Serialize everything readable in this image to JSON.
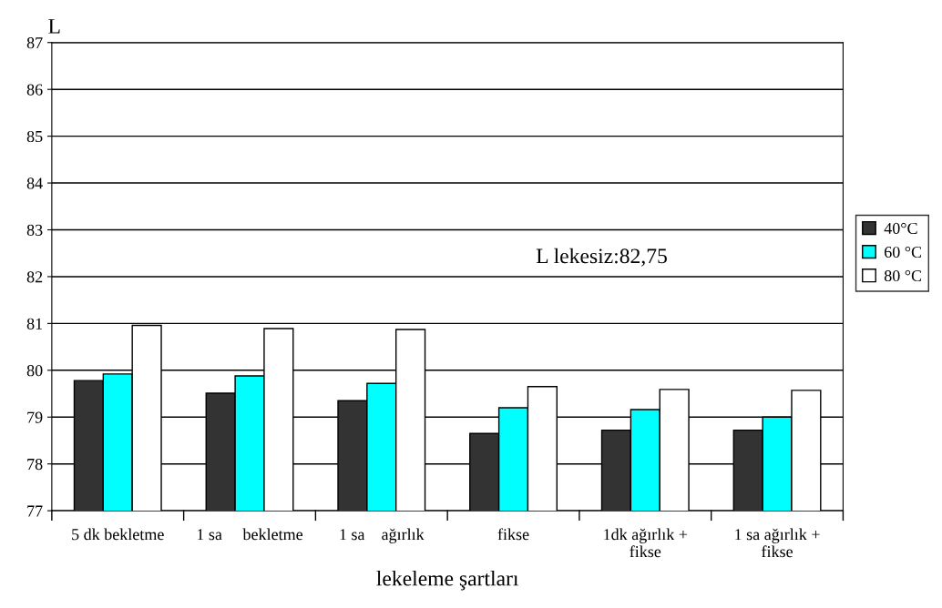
{
  "chart_data": {
    "type": "bar",
    "ylabel": "L",
    "xlabel": "lekeleme şartları",
    "categories": [
      "5 dk bekletme",
      "1 sa     bekletme",
      "1 sa    ağırlık",
      "fikse",
      "1dk ağırlık +\nfikse",
      "1 sa ağırlık +\nfikse"
    ],
    "series": [
      {
        "name": "40°C",
        "color": "#333333",
        "values": [
          79.78,
          79.51,
          79.35,
          78.65,
          78.72,
          78.72
        ]
      },
      {
        "name": "60 °C",
        "color": "#00ffff",
        "values": [
          79.92,
          79.88,
          79.72,
          79.2,
          79.16,
          79.0
        ]
      },
      {
        "name": "80 °C",
        "color": "#ffffff",
        "values": [
          80.96,
          80.89,
          80.87,
          79.65,
          79.59,
          79.57
        ]
      }
    ],
    "ylim": [
      77,
      87
    ],
    "yticks": [
      77,
      78,
      79,
      80,
      81,
      82,
      83,
      84,
      85,
      86,
      87
    ],
    "grid": "y",
    "legend": "right",
    "annotations": [
      "L lekesiz:82,75"
    ]
  }
}
